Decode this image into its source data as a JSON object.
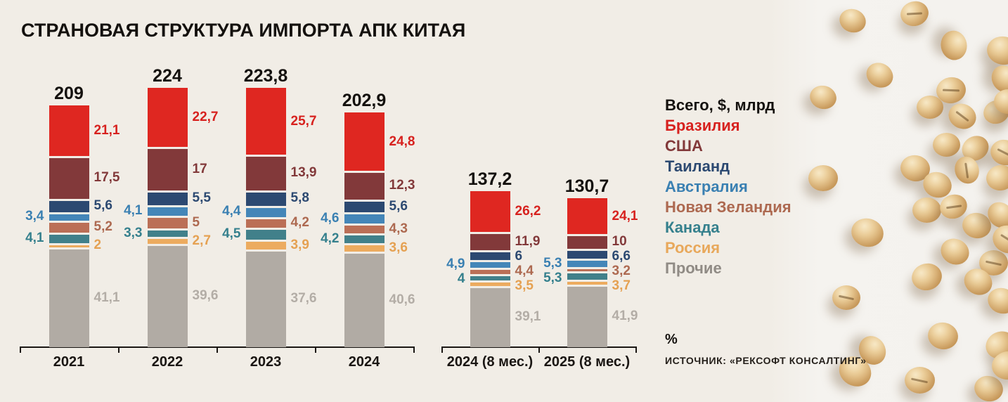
{
  "title": "СТРАНОВАЯ СТРУКТУРА ИМПОРТА АПК КИТАЯ",
  "legend": {
    "total_label": "Всего, $, млрд",
    "entries": [
      {
        "label": "Бразилия",
        "color": "#d7211e"
      },
      {
        "label": "США",
        "color": "#82393a"
      },
      {
        "label": "Таиланд",
        "color": "#2c4971"
      },
      {
        "label": "Австралия",
        "color": "#3a80b2"
      },
      {
        "label": "Новая Зеландия",
        "color": "#ad6950"
      },
      {
        "label": "Канада",
        "color": "#35808d"
      },
      {
        "label": "Россия",
        "color": "#e8a85b"
      },
      {
        "label": "Прочие",
        "color": "#908b85"
      }
    ]
  },
  "unit_note": "%",
  "source": "ИСТОЧНИК: «РЕКСОФТ КОНСАЛТИНГ»",
  "chart_data": {
    "type": "bar",
    "subtype": "stacked",
    "values_unit": "% от итога",
    "totals_unit": "$ млрд",
    "legend_position": "right",
    "grid": false,
    "series_colors": {
      "Бразилия": {
        "fill": "#df2721",
        "text": "#d7211e"
      },
      "США": {
        "fill": "#82393a",
        "text": "#82393a"
      },
      "Таиланд": {
        "fill": "#2c4971",
        "text": "#2c4971"
      },
      "Австралия": {
        "fill": "#4486b8",
        "text": "#3a80b2"
      },
      "Новая Зеландия": {
        "fill": "#bb6f56",
        "text": "#ad6950"
      },
      "Канада": {
        "fill": "#41808a",
        "text": "#35808d"
      },
      "Россия": {
        "fill": "#ecab5f",
        "text": "#e5a152"
      },
      "Прочие": {
        "fill": "#b1aba4",
        "text": "#b3ada6"
      }
    },
    "label_sides": {
      "Бразилия": "right",
      "США": "right",
      "Таиланд": "right",
      "Австралия": "left",
      "Новая Зеландия": "right",
      "Канада": "left",
      "Россия": "right",
      "Прочие": "right"
    },
    "groups": [
      {
        "name": "годовые",
        "categories": [
          "2021",
          "2022",
          "2023",
          "2024"
        ],
        "totals": [
          209,
          224,
          223.8,
          202.9
        ],
        "total_labels": [
          "209",
          "224",
          "223,8",
          "202,9"
        ],
        "series": [
          {
            "name": "Бразилия",
            "values": [
              21.1,
              22.7,
              25.7,
              24.8
            ],
            "labels": [
              "21,1",
              "22,7",
              "25,7",
              "24,8"
            ]
          },
          {
            "name": "США",
            "values": [
              17.5,
              17.0,
              13.9,
              12.3
            ],
            "labels": [
              "17,5",
              "17",
              "13,9",
              "12,3"
            ]
          },
          {
            "name": "Таиланд",
            "values": [
              5.6,
              5.5,
              5.8,
              5.6
            ],
            "labels": [
              "5,6",
              "5,5",
              "5,8",
              "5,6"
            ]
          },
          {
            "name": "Австралия",
            "values": [
              3.4,
              4.1,
              4.4,
              4.6
            ],
            "labels": [
              "3,4",
              "4,1",
              "4,4",
              "4,6"
            ]
          },
          {
            "name": "Новая Зеландия",
            "values": [
              5.2,
              5.0,
              4.2,
              4.3
            ],
            "labels": [
              "5,2",
              "5",
              "4,2",
              "4,3"
            ]
          },
          {
            "name": "Канада",
            "values": [
              4.1,
              3.3,
              4.5,
              4.2
            ],
            "labels": [
              "4,1",
              "3,3",
              "4,5",
              "4,2"
            ]
          },
          {
            "name": "Россия",
            "values": [
              2.0,
              2.7,
              3.9,
              3.6
            ],
            "labels": [
              "2",
              "2,7",
              "3,9",
              "3,6"
            ]
          },
          {
            "name": "Прочие",
            "values": [
              41.1,
              39.6,
              37.6,
              40.6
            ],
            "labels": [
              "41,1",
              "39,6",
              "37,6",
              "40,6"
            ]
          }
        ]
      },
      {
        "name": "8 месяцев",
        "categories": [
          "2024 (8 мес.)",
          "2025 (8 мес.)"
        ],
        "totals": [
          137.2,
          130.7
        ],
        "total_labels": [
          "137,2",
          "130,7"
        ],
        "series": [
          {
            "name": "Бразилия",
            "values": [
              26.2,
              24.1
            ],
            "labels": [
              "26,2",
              "24,1"
            ]
          },
          {
            "name": "США",
            "values": [
              11.9,
              10.0
            ],
            "labels": [
              "11,9",
              "10"
            ]
          },
          {
            "name": "Таиланд",
            "values": [
              6.0,
              6.6
            ],
            "labels": [
              "6",
              "6,6"
            ]
          },
          {
            "name": "Австралия",
            "values": [
              4.9,
              5.3
            ],
            "labels": [
              "4,9",
              "5,3"
            ]
          },
          {
            "name": "Новая Зеландия",
            "values": [
              4.4,
              3.2
            ],
            "labels": [
              "4,4",
              "3,2"
            ]
          },
          {
            "name": "Канада",
            "values": [
              4.0,
              5.3
            ],
            "labels": [
              "4",
              "5,3"
            ]
          },
          {
            "name": "Россия",
            "values": [
              3.5,
              3.7
            ],
            "labels": [
              "3,5",
              "3,7"
            ]
          },
          {
            "name": "Прочие",
            "values": [
              39.1,
              41.9
            ],
            "labels": [
              "39,1",
              "41,9"
            ]
          }
        ]
      }
    ]
  }
}
